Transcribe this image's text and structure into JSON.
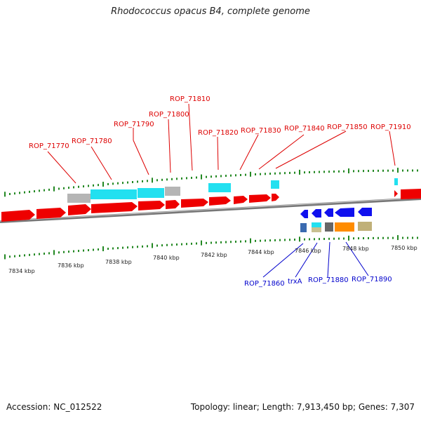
{
  "title": "Rhodococcus opacus B4, complete genome",
  "accession": "Accession: NC_012522",
  "summary": "Topology: linear; Length: 7,913,450 bp; Genes: 7,307",
  "colors": {
    "forward_gene": "#ee0000",
    "reverse_gene": "#0000ee",
    "top_label": "#dd0000",
    "bottom_label": "#0000cc",
    "tick": "#228822",
    "axis": "#888888"
  },
  "axis_ticks": [
    "7834 kbp",
    "7836 kbp",
    "7838 kbp",
    "7840 kbp",
    "7842 kbp",
    "7844 kbp",
    "7846 kbp",
    "7848 kbp",
    "7850 kbp"
  ],
  "forward_gene_labels": [
    "ROP_71770",
    "ROP_71780",
    "ROP_71790",
    "ROP_71800",
    "ROP_71810",
    "ROP_71820",
    "ROP_71830",
    "ROP_71840",
    "ROP_71850",
    "ROP_71910"
  ],
  "reverse_gene_labels": [
    "ROP_71860",
    "trxA",
    "ROP_71880",
    "ROP_71890"
  ]
}
